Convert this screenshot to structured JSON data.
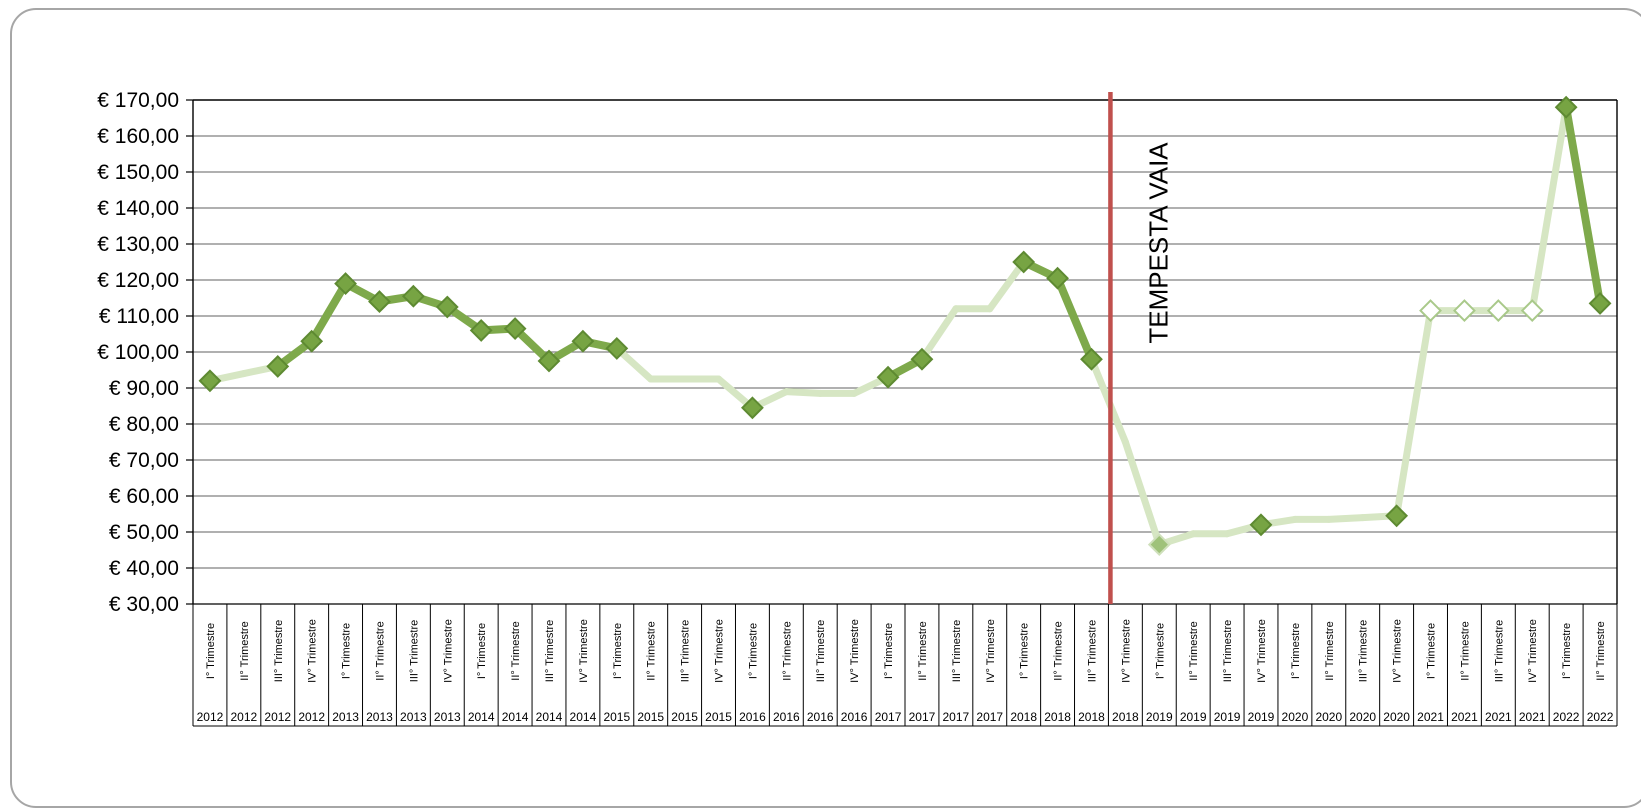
{
  "chart_data": {
    "type": "line",
    "title": "",
    "xlabel": "",
    "ylabel": "",
    "ylim": [
      30,
      170
    ],
    "ytick_step": 10,
    "y_tick_labels": [
      "€ 30,00",
      "€ 40,00",
      "€ 50,00",
      "€ 60,00",
      "€ 70,00",
      "€ 80,00",
      "€ 90,00",
      "€ 100,00",
      "€ 110,00",
      "€ 120,00",
      "€ 130,00",
      "€ 140,00",
      "€ 150,00",
      "€ 160,00",
      "€ 170,00"
    ],
    "grid": true,
    "legend": "none",
    "categories": [
      {
        "quarter": "I° Trimestre",
        "year": "2012"
      },
      {
        "quarter": "II° Trimestre",
        "year": "2012"
      },
      {
        "quarter": "III° Trimestre",
        "year": "2012"
      },
      {
        "quarter": "IV° Trimestre",
        "year": "2012"
      },
      {
        "quarter": "I° Trimestre",
        "year": "2013"
      },
      {
        "quarter": "II° Trimestre",
        "year": "2013"
      },
      {
        "quarter": "III° Trimestre",
        "year": "2013"
      },
      {
        "quarter": "IV° Trimestre",
        "year": "2013"
      },
      {
        "quarter": "I° Trimestre",
        "year": "2014"
      },
      {
        "quarter": "II° Trimestre",
        "year": "2014"
      },
      {
        "quarter": "III° Trimestre",
        "year": "2014"
      },
      {
        "quarter": "IV° Trimestre",
        "year": "2014"
      },
      {
        "quarter": "I° Trimestre",
        "year": "2015"
      },
      {
        "quarter": "II° Trimestre",
        "year": "2015"
      },
      {
        "quarter": "III° Trimestre",
        "year": "2015"
      },
      {
        "quarter": "IV° Trimestre",
        "year": "2015"
      },
      {
        "quarter": "I° Trimestre",
        "year": "2016"
      },
      {
        "quarter": "II° Trimestre",
        "year": "2016"
      },
      {
        "quarter": "III° Trimestre",
        "year": "2016"
      },
      {
        "quarter": "IV° Trimestre",
        "year": "2016"
      },
      {
        "quarter": "I° Trimestre",
        "year": "2017"
      },
      {
        "quarter": "II° Trimestre",
        "year": "2017"
      },
      {
        "quarter": "III° Trimestre",
        "year": "2017"
      },
      {
        "quarter": "IV° Trimestre",
        "year": "2017"
      },
      {
        "quarter": "I° Trimestre",
        "year": "2018"
      },
      {
        "quarter": "II° Trimestre",
        "year": "2018"
      },
      {
        "quarter": "III° Trimestre",
        "year": "2018"
      },
      {
        "quarter": "IV° Trimestre",
        "year": "2018"
      },
      {
        "quarter": "I° Trimestre",
        "year": "2019"
      },
      {
        "quarter": "II° Trimestre",
        "year": "2019"
      },
      {
        "quarter": "III° Trimestre",
        "year": "2019"
      },
      {
        "quarter": "IV° Trimestre",
        "year": "2019"
      },
      {
        "quarter": "I° Trimestre",
        "year": "2020"
      },
      {
        "quarter": "II° Trimestre",
        "year": "2020"
      },
      {
        "quarter": "III° Trimestre",
        "year": "2020"
      },
      {
        "quarter": "IV° Trimestre",
        "year": "2020"
      },
      {
        "quarter": "I° Trimestre",
        "year": "2021"
      },
      {
        "quarter": "II° Trimestre",
        "year": "2021"
      },
      {
        "quarter": "III° Trimestre",
        "year": "2021"
      },
      {
        "quarter": "IV° Trimestre",
        "year": "2021"
      },
      {
        "quarter": "I° Trimestre",
        "year": "2022"
      },
      {
        "quarter": "II° Trimestre",
        "year": "2022"
      }
    ],
    "series": [
      {
        "values": [
          92,
          94,
          96,
          103,
          119,
          114,
          115.5,
          112.5,
          106,
          106.5,
          97.5,
          103,
          101,
          92.5,
          92.5,
          92.5,
          84.5,
          89,
          88.5,
          88.5,
          93,
          98,
          112,
          112,
          125,
          120.5,
          98,
          75,
          46.5,
          49.5,
          49.5,
          52,
          53.5,
          53.5,
          54,
          54.5,
          111.5,
          111.5,
          111.5,
          111.5,
          168,
          113.5
        ],
        "markers": [
          "filled",
          null,
          "filled",
          "filled",
          "filled",
          "filled",
          "filled",
          "filled",
          "filled",
          "filled",
          "filled",
          "filled",
          "filled",
          null,
          null,
          null,
          "filled",
          null,
          null,
          null,
          "filled",
          "filled",
          null,
          null,
          "filled",
          "filled",
          "filled",
          null,
          "faded",
          null,
          null,
          "filled",
          null,
          null,
          null,
          "filled",
          "hollow",
          "hollow",
          "hollow",
          "hollow",
          "filled",
          "filled"
        ],
        "segment_styles": [
          "faded",
          "faded",
          "strong",
          "strong",
          "strong",
          "strong",
          "strong",
          "strong",
          "strong",
          "strong",
          "strong",
          "strong",
          "faded",
          "faded",
          "faded",
          "faded",
          "faded",
          "faded",
          "faded",
          "faded",
          "strong",
          "faded",
          "faded",
          "faded",
          "strong",
          "strong",
          "faded",
          "faded",
          "faded",
          "faded",
          "faded",
          "faded",
          "faded",
          "faded",
          "faded",
          "faded",
          "faded",
          "faded",
          "faded",
          "faded",
          "strong"
        ]
      }
    ],
    "colors": {
      "strong": "#7ea94b",
      "faded": "#d6e6c3",
      "marker": "#77a443",
      "marker_edge": "#5e8a32",
      "hollow_fill": "#ffffff",
      "hollow_edge": "#a9c98a",
      "event_line": "#c0504d"
    },
    "annotations": [
      {
        "text": "TEMPESTA VAIA",
        "position_category": "IV° Trimestre 2018"
      }
    ]
  }
}
